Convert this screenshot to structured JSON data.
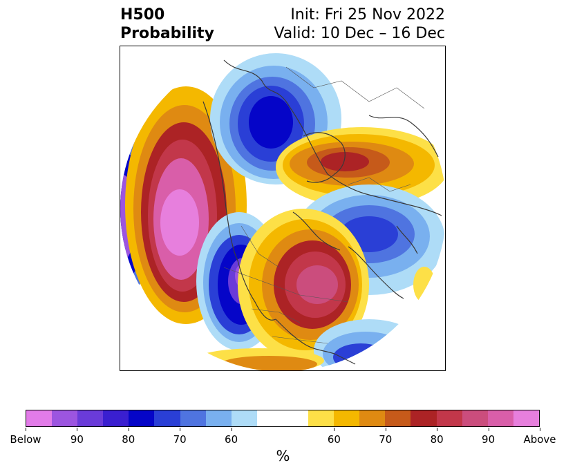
{
  "title": {
    "left_line1": "H500",
    "left_line2": "Probability",
    "right_line1": "Init: Fri 25 Nov 2022",
    "right_line2": "Valid: 10 Dec – 16 Dec"
  },
  "colorbar": {
    "label": "%",
    "colors": [
      "#e27be8",
      "#9c55e0",
      "#6a3bd9",
      "#3a1fd0",
      "#0505c8",
      "#2a3fd6",
      "#4f74e0",
      "#79b0ef",
      "#aedcf7",
      "#ffffff",
      "#ffffff",
      "#fde047",
      "#f4b800",
      "#df8a12",
      "#c65a1a",
      "#ac2325",
      "#c2374a",
      "#cb4d7d",
      "#d95ea9",
      "#e77fdd"
    ],
    "tick_labels": [
      "Below",
      "90",
      "80",
      "70",
      "60",
      "60",
      "70",
      "80",
      "90",
      "Above"
    ]
  },
  "map": {
    "projection": "north-polar-stereographic",
    "features": [
      "coastlines",
      "country-borders",
      "state-borders"
    ]
  }
}
